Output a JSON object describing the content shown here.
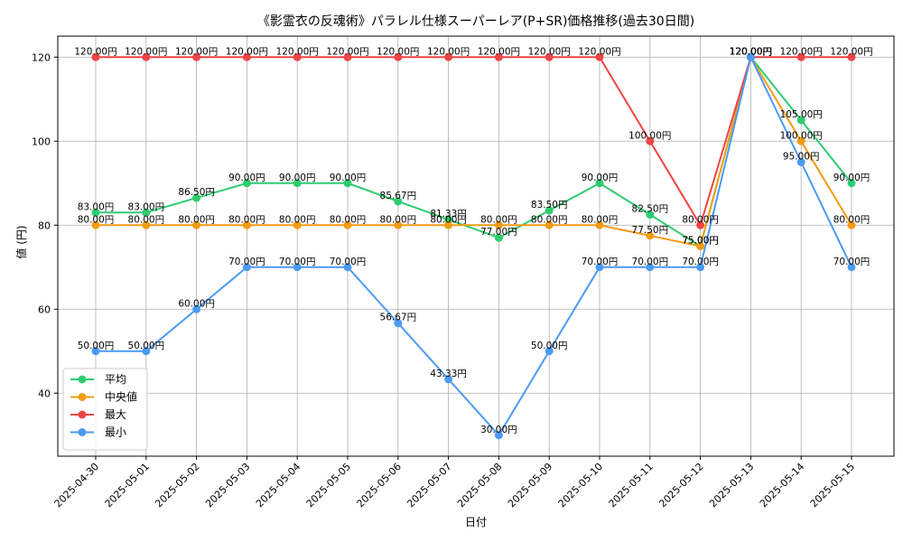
{
  "chart_data": {
    "type": "line",
    "title": "《影霊衣の反魂術》パラレル仕様スーパーレア(P+SR)価格推移(過去30日間)",
    "xlabel": "日付",
    "ylabel": "値 (円)",
    "ylim": [
      25,
      125
    ],
    "yticks": [
      40,
      60,
      80,
      100,
      120
    ],
    "grid": true,
    "legend_position": "lower-left",
    "value_suffix": "円",
    "categories": [
      "2025-04-30",
      "2025-05-01",
      "2025-05-02",
      "2025-05-03",
      "2025-05-04",
      "2025-05-05",
      "2025-05-06",
      "2025-05-07",
      "2025-05-08",
      "2025-05-09",
      "2025-05-10",
      "2025-05-11",
      "2025-05-12",
      "2025-05-13",
      "2025-05-14",
      "2025-05-15"
    ],
    "series": [
      {
        "name": "平均",
        "color": "#2ecc71",
        "values": [
          83,
          83,
          86.5,
          90,
          90,
          90,
          85.67,
          81.33,
          77,
          83.5,
          90,
          82.5,
          75,
          120,
          105,
          90
        ]
      },
      {
        "name": "中央値",
        "color": "#f39c12",
        "values": [
          80,
          80,
          80,
          80,
          80,
          80,
          80,
          80,
          80,
          80,
          80,
          77.5,
          75,
          120,
          100,
          80
        ]
      },
      {
        "name": "最大",
        "color": "#ef4444",
        "values": [
          120,
          120,
          120,
          120,
          120,
          120,
          120,
          120,
          120,
          120,
          120,
          100,
          80,
          120,
          120,
          120
        ]
      },
      {
        "name": "最小",
        "color": "#4a9af5",
        "values": [
          50,
          50,
          60,
          70,
          70,
          70,
          56.67,
          43.33,
          30,
          50,
          70,
          70,
          70,
          120,
          95,
          70
        ]
      }
    ]
  }
}
